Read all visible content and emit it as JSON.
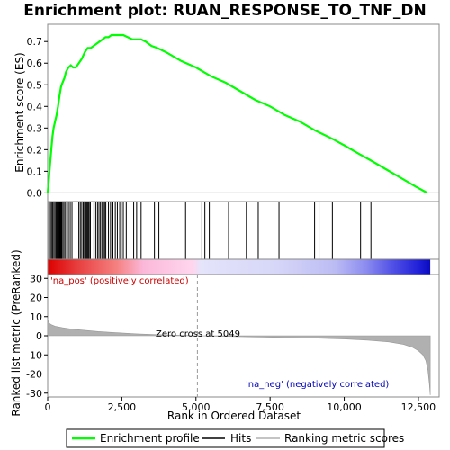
{
  "chart_data": [
    {
      "type": "line",
      "title": "Enrichment plot: RUAN_RESPONSE_TO_TNF_DN",
      "ylabel": "Enrichment score (ES)",
      "ylim": [
        -0.04,
        0.78
      ],
      "yticks": [
        0.0,
        0.1,
        0.2,
        0.3,
        0.4,
        0.5,
        0.6,
        0.7
      ],
      "ytick_labels": [
        "0.0",
        "0.1",
        "0.2",
        "0.3",
        "0.4",
        "0.5",
        "0.6",
        "0.7"
      ],
      "xlim": [
        0,
        13200
      ],
      "line_color": "#00ff00",
      "series": [
        {
          "name": "Enrichment profile",
          "x": [
            0,
            40,
            80,
            120,
            160,
            200,
            250,
            300,
            350,
            400,
            450,
            500,
            560,
            620,
            700,
            780,
            860,
            950,
            1050,
            1150,
            1250,
            1350,
            1450,
            1550,
            1650,
            1750,
            1850,
            1950,
            2050,
            2150,
            2250,
            2400,
            2550,
            2700,
            2850,
            3000,
            3150,
            3300,
            3500,
            3700,
            4000,
            4500,
            5000,
            5500,
            6000,
            6500,
            7000,
            7500,
            8000,
            8500,
            9000,
            9300,
            9600,
            10000,
            10500,
            10900,
            11400,
            11900,
            12400,
            12800
          ],
          "y": [
            0.0,
            0.06,
            0.13,
            0.2,
            0.26,
            0.3,
            0.33,
            0.36,
            0.4,
            0.45,
            0.49,
            0.51,
            0.53,
            0.56,
            0.58,
            0.59,
            0.58,
            0.58,
            0.6,
            0.62,
            0.65,
            0.67,
            0.67,
            0.68,
            0.69,
            0.7,
            0.71,
            0.72,
            0.72,
            0.73,
            0.73,
            0.73,
            0.73,
            0.72,
            0.71,
            0.71,
            0.71,
            0.7,
            0.68,
            0.67,
            0.65,
            0.61,
            0.58,
            0.54,
            0.51,
            0.47,
            0.43,
            0.4,
            0.36,
            0.33,
            0.29,
            0.27,
            0.25,
            0.22,
            0.18,
            0.15,
            0.11,
            0.07,
            0.03,
            0.0
          ]
        }
      ]
    },
    {
      "type": "scatter",
      "title": "",
      "series": [
        {
          "name": "Hits",
          "x": [
            40,
            90,
            130,
            170,
            210,
            250,
            290,
            320,
            350,
            380,
            410,
            440,
            470,
            510,
            550,
            600,
            650,
            700,
            760,
            820,
            1050,
            1100,
            1150,
            1200,
            1240,
            1280,
            1310,
            1340,
            1370,
            1400,
            1440,
            1560,
            1620,
            1680,
            1730,
            1780,
            1830,
            1880,
            1920,
            1960,
            2050,
            2120,
            2200,
            2280,
            2350,
            2430,
            2480,
            2550,
            2650,
            2900,
            3000,
            3150,
            3600,
            3750,
            4650,
            5200,
            5300,
            5450,
            6100,
            6700,
            7100,
            7800,
            9000,
            9150,
            9600,
            10550,
            10900
          ]
        }
      ]
    },
    {
      "type": "area",
      "title": "",
      "xlabel": "Rank in Ordered Dataset",
      "ylabel": "Ranked list metric (PreRanked)",
      "ylim": [
        -32,
        32
      ],
      "yticks": [
        -30,
        -20,
        -10,
        0,
        10,
        20,
        30
      ],
      "ytick_labels": [
        "-30",
        "-20",
        "-10",
        "0",
        "10",
        "20",
        "30"
      ],
      "xticks": [
        0,
        2500,
        5000,
        7500,
        10000,
        12500
      ],
      "xtick_labels": [
        "0",
        "2,500",
        "5,000",
        "7,500",
        "10,000",
        "12,500"
      ],
      "xlim": [
        0,
        13200
      ],
      "zero_cross_rank": 5049,
      "zero_cross_label": "Zero cross at 5049",
      "pos_label": "'na_pos' (positively correlated)",
      "neg_label": "'na_neg' (negatively correlated)",
      "fill_color": "#b0b0b0",
      "series": [
        {
          "name": "Ranking metric scores",
          "x": [
            0,
            20,
            60,
            120,
            250,
            500,
            800,
            1200,
            1700,
            2300,
            3000,
            3800,
            4500,
            5049,
            6000,
            7000,
            8000,
            9000,
            10000,
            10800,
            11500,
            12000,
            12300,
            12500,
            12650,
            12750,
            12820,
            12870,
            12900
          ],
          "y": [
            9.0,
            7.5,
            6.5,
            5.8,
            5.0,
            4.2,
            3.5,
            2.9,
            2.2,
            1.6,
            1.0,
            0.5,
            0.2,
            0.0,
            -0.3,
            -0.6,
            -0.9,
            -1.2,
            -1.7,
            -2.3,
            -3.2,
            -4.5,
            -6.0,
            -7.8,
            -10.0,
            -13.0,
            -18.0,
            -25.0,
            -31.0
          ]
        }
      ]
    }
  ],
  "legend": {
    "items": [
      {
        "label": "Enrichment profile",
        "color": "#00ff00"
      },
      {
        "label": "Hits",
        "color": "#000000"
      },
      {
        "label": "Ranking metric scores",
        "color": "#b0b0b0"
      }
    ]
  }
}
